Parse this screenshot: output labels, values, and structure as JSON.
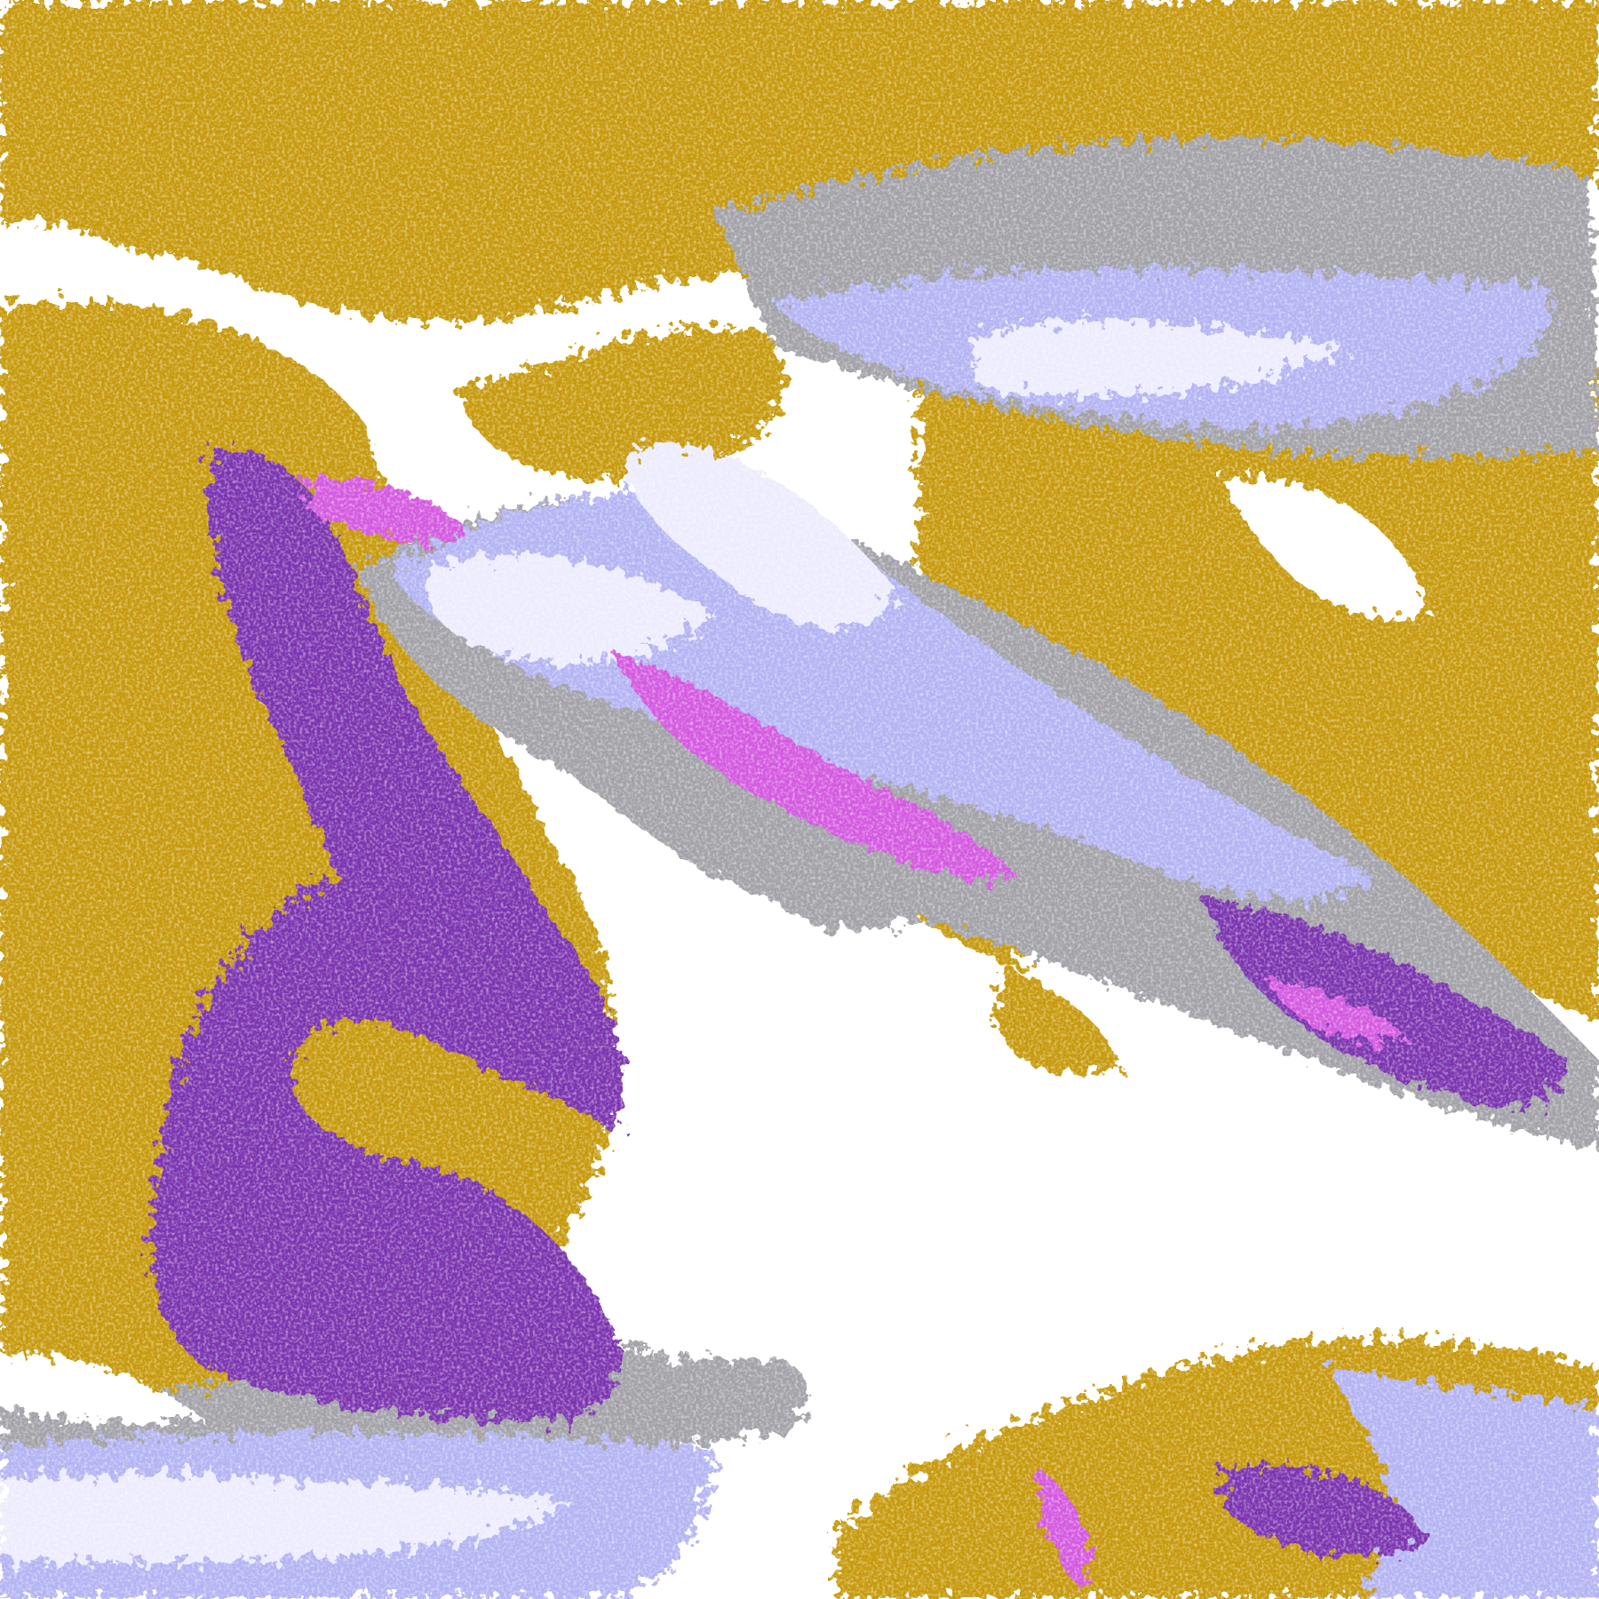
{
  "image": {
    "palette": {
      "gold": "#c79a0a",
      "purple": "#7b35b0",
      "magenta": "#d45ae0",
      "lavender": "#b4b4f4",
      "pale": "#ececfe",
      "gray": "#a2a2a8",
      "white": "#ffffff"
    }
  }
}
